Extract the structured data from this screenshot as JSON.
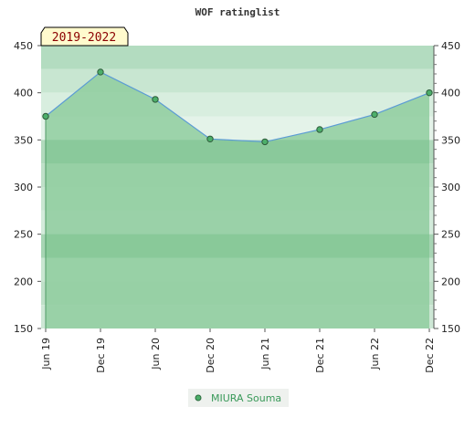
{
  "chart_data": {
    "type": "line",
    "title": "WOF ratinglist",
    "period_label": "2019-2022",
    "categories": [
      "Jun 19",
      "Dec 19",
      "Jun 20",
      "Dec 20",
      "Jun 21",
      "Dec 21",
      "Jun 22",
      "Dec 22"
    ],
    "series": [
      {
        "name": "MIURA Souma",
        "values": [
          375,
          422,
          393,
          351,
          348,
          361,
          377,
          400
        ]
      }
    ],
    "ylim": [
      150,
      450
    ],
    "yticks": [
      150,
      200,
      250,
      300,
      350,
      400,
      450
    ],
    "xlabel": "",
    "ylabel": "",
    "grid": true,
    "legend": "bottom-center",
    "colors": {
      "line": "#5b9bd5",
      "area": "#8fcc9f",
      "marker": "#4caf6a",
      "legend_text": "#3a9a5a",
      "badge_bg": "#fffacd",
      "badge_text": "#8b0000"
    }
  }
}
